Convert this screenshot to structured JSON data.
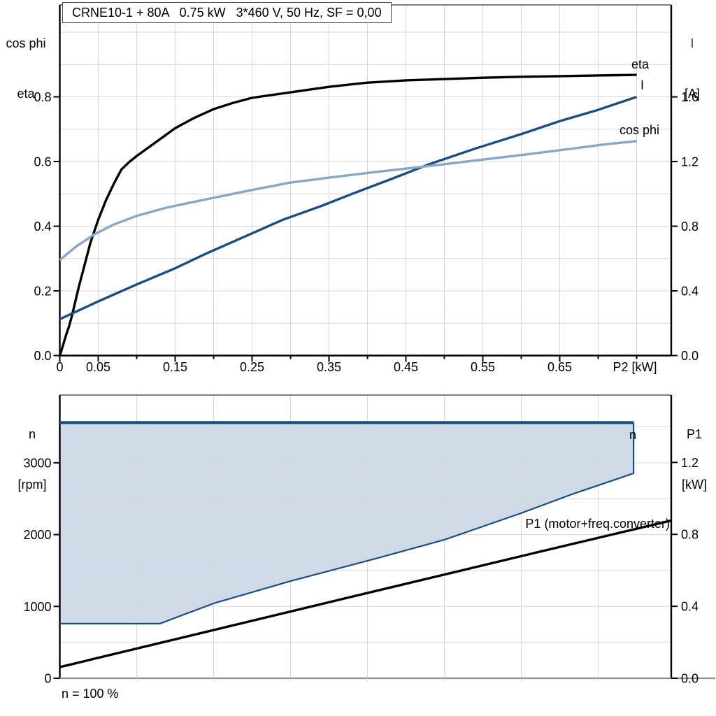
{
  "title": "CRNE10-1 + 80A   0.75 kW   3*460 V, 50 Hz, SF = 0,00",
  "footnote": "n = 100 %",
  "colors": {
    "black": "#000000",
    "dark_blue": "#1b4e80",
    "light_blue": "#87a7c4",
    "area_fill": "#cfdae7",
    "grid": "#d7d7d7",
    "axis_gray": "#8f8f8f"
  },
  "axis_corner_labels": {
    "top_left": {
      "line1": "cos phi",
      "line2": "eta"
    },
    "top_right": {
      "line1": "I",
      "line2": "[A]"
    },
    "bottom_left": {
      "line1": "n",
      "line2": "[rpm]"
    },
    "bottom_right": {
      "line1": "P1",
      "line2": "[kW]"
    }
  },
  "chart_data": [
    {
      "type": "line",
      "name": "motor-curves",
      "x_axis": {
        "label": "P2 [kW]",
        "min": 0,
        "max": 0.795,
        "ticks": [
          [
            0,
            "0"
          ],
          [
            0.05,
            "0.05"
          ],
          [
            0.1,
            ""
          ],
          [
            0.15,
            "0.15"
          ],
          [
            0.2,
            ""
          ],
          [
            0.25,
            "0.25"
          ],
          [
            0.3,
            ""
          ],
          [
            0.35,
            "0.35"
          ],
          [
            0.4,
            ""
          ],
          [
            0.45,
            "0.45"
          ],
          [
            0.5,
            ""
          ],
          [
            0.55,
            "0.55"
          ],
          [
            0.6,
            ""
          ],
          [
            0.65,
            "0.65"
          ],
          [
            0.7,
            ""
          ],
          [
            0.75,
            ""
          ]
        ]
      },
      "left_axis": {
        "label": "cos phi / eta",
        "min": 0,
        "max": 1.0843,
        "ticks": [
          [
            0,
            "0.0"
          ],
          [
            0.1,
            ""
          ],
          [
            0.2,
            "0.2"
          ],
          [
            0.3,
            ""
          ],
          [
            0.4,
            "0.4"
          ],
          [
            0.5,
            ""
          ],
          [
            0.6,
            "0.6"
          ],
          [
            0.7,
            ""
          ],
          [
            0.8,
            "0.8"
          ],
          [
            0.9,
            ""
          ],
          [
            1,
            ""
          ]
        ]
      },
      "right_axis": {
        "label": "I [A]",
        "min": 0,
        "max": 2.1691,
        "ticks": [
          [
            0,
            "0.0"
          ],
          [
            0.4,
            "0.4"
          ],
          [
            0.8,
            "0.8"
          ],
          [
            1.2,
            "1.2"
          ],
          [
            1.6,
            "1.6"
          ]
        ]
      },
      "series": [
        {
          "name": "eta",
          "label": "eta",
          "type": "line",
          "axis": "left",
          "color": "black",
          "width": 3.4,
          "points": [
            [
              0,
              0
            ],
            [
              0.004,
              0.03
            ],
            [
              0.008,
              0.062
            ],
            [
              0.012,
              0.09
            ],
            [
              0.016,
              0.125
            ],
            [
              0.02,
              0.165
            ],
            [
              0.025,
              0.215
            ],
            [
              0.03,
              0.26
            ],
            [
              0.035,
              0.305
            ],
            [
              0.04,
              0.35
            ],
            [
              0.05,
              0.42
            ],
            [
              0.06,
              0.48
            ],
            [
              0.07,
              0.53
            ],
            [
              0.08,
              0.575
            ],
            [
              0.09,
              0.598
            ],
            [
              0.1,
              0.617
            ],
            [
              0.125,
              0.66
            ],
            [
              0.15,
              0.703
            ],
            [
              0.175,
              0.735
            ],
            [
              0.2,
              0.762
            ],
            [
              0.225,
              0.781
            ],
            [
              0.25,
              0.797
            ],
            [
              0.3,
              0.814
            ],
            [
              0.35,
              0.831
            ],
            [
              0.4,
              0.844
            ],
            [
              0.45,
              0.851
            ],
            [
              0.5,
              0.855
            ],
            [
              0.55,
              0.859
            ],
            [
              0.6,
              0.862
            ],
            [
              0.65,
              0.864
            ],
            [
              0.7,
              0.866
            ],
            [
              0.75,
              0.868
            ]
          ]
        },
        {
          "name": "I",
          "label": "I",
          "type": "line",
          "axis": "right",
          "color": "dark_blue",
          "width": 3.4,
          "points": [
            [
              0,
              0.225
            ],
            [
              0.05,
              0.335
            ],
            [
              0.1,
              0.44
            ],
            [
              0.15,
              0.54
            ],
            [
              0.19,
              0.63
            ],
            [
              0.24,
              0.735
            ],
            [
              0.29,
              0.84
            ],
            [
              0.34,
              0.925
            ],
            [
              0.38,
              1.0
            ],
            [
              0.43,
              1.09
            ],
            [
              0.48,
              1.183
            ],
            [
              0.54,
              1.28
            ],
            [
              0.6,
              1.37
            ],
            [
              0.65,
              1.45
            ],
            [
              0.7,
              1.52
            ],
            [
              0.75,
              1.6
            ]
          ]
        },
        {
          "name": "cos-phi",
          "label": "cos phi",
          "type": "line",
          "axis": "left",
          "color": "light_blue",
          "width": 3.4,
          "points": [
            [
              0,
              0.295
            ],
            [
              0.02,
              0.335
            ],
            [
              0.045,
              0.375
            ],
            [
              0.07,
              0.405
            ],
            [
              0.1,
              0.432
            ],
            [
              0.14,
              0.458
            ],
            [
              0.19,
              0.483
            ],
            [
              0.25,
              0.512
            ],
            [
              0.3,
              0.535
            ],
            [
              0.36,
              0.553
            ],
            [
              0.42,
              0.57
            ],
            [
              0.48,
              0.586
            ],
            [
              0.54,
              0.603
            ],
            [
              0.6,
              0.62
            ],
            [
              0.66,
              0.638
            ],
            [
              0.705,
              0.652
            ],
            [
              0.75,
              0.663
            ]
          ]
        }
      ]
    },
    {
      "type": "line",
      "name": "speed-power-curves",
      "x_axis": {
        "label": "",
        "min": 0,
        "max": 0.795,
        "ticks": [
          [
            0.1,
            ""
          ],
          [
            0.2,
            ""
          ],
          [
            0.3,
            ""
          ],
          [
            0.4,
            ""
          ],
          [
            0.5,
            ""
          ],
          [
            0.6,
            ""
          ],
          [
            0.7,
            ""
          ]
        ]
      },
      "left_axis": {
        "label": "n [rpm]",
        "min": 0,
        "max": 3943,
        "ticks": [
          [
            0,
            "0"
          ],
          [
            500,
            ""
          ],
          [
            1000,
            "1000"
          ],
          [
            1500,
            ""
          ],
          [
            2000,
            "2000"
          ],
          [
            2500,
            ""
          ],
          [
            3000,
            "3000"
          ],
          [
            3500,
            ""
          ]
        ]
      },
      "right_axis": {
        "label": "P1 [kW]",
        "min": 0,
        "max": 1.5745,
        "ticks": [
          [
            0,
            "0.0"
          ],
          [
            0.2,
            ""
          ],
          [
            0.4,
            "0.4"
          ],
          [
            0.6,
            ""
          ],
          [
            0.8,
            "0.8"
          ],
          [
            1,
            ""
          ],
          [
            1.2,
            "1.2"
          ],
          [
            1.4,
            ""
          ]
        ]
      },
      "series": [
        {
          "name": "n-range",
          "label": "",
          "type": "area",
          "axis": "left",
          "color": "area_fill",
          "points": [
            [
              0,
              3560
            ],
            [
              0.746,
              3560
            ],
            [
              0.746,
              2853
            ],
            [
              0.668,
              2570
            ],
            [
              0.597,
              2288
            ],
            [
              0.5,
              1928
            ],
            [
              0.414,
              1675
            ],
            [
              0.3,
              1353
            ],
            [
              0.2,
              1042
            ],
            [
              0.13,
              760
            ],
            [
              0,
              760
            ]
          ]
        },
        {
          "name": "n-lower",
          "label": "",
          "type": "line",
          "axis": "left",
          "color": "dark_blue",
          "width": 2.2,
          "points": [
            [
              0,
              760
            ],
            [
              0.13,
              760
            ],
            [
              0.2,
              1042
            ],
            [
              0.3,
              1353
            ],
            [
              0.414,
              1675
            ],
            [
              0.5,
              1928
            ],
            [
              0.597,
              2288
            ],
            [
              0.668,
              2570
            ],
            [
              0.746,
              2853
            ],
            [
              0.746,
              3560
            ]
          ]
        },
        {
          "name": "n-max",
          "label": "n",
          "type": "line",
          "axis": "left",
          "color": "dark_blue",
          "width": 4.2,
          "points": [
            [
              0,
              3560
            ],
            [
              0.746,
              3560
            ]
          ]
        },
        {
          "name": "P1",
          "label": "P1 (motor+freq.converter)",
          "type": "line",
          "axis": "right",
          "color": "black",
          "width": 3.4,
          "points": [
            [
              0,
              0.062
            ],
            [
              0.2,
              0.268
            ],
            [
              0.4,
              0.474
            ],
            [
              0.6,
              0.679
            ],
            [
              0.795,
              0.877
            ]
          ]
        }
      ]
    }
  ]
}
